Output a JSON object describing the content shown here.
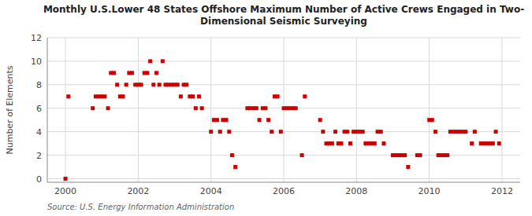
{
  "chart_data": {
    "type": "scatter",
    "title": "Monthly U.S.Lower 48 States Offshore Maximum Number of Active Crews Engaged in Two-\nDimensional Seismic Surveying",
    "y_label": "Number of Elements",
    "source": "Source: U.S. Energy Information Administration",
    "color": "#cc0000",
    "marker": "square",
    "grid": true,
    "xlim": [
      1999.5,
      2012.5
    ],
    "ylim": [
      -0.3,
      12
    ],
    "xticks": [
      2000,
      2002,
      2004,
      2006,
      2008,
      2010,
      2012
    ],
    "yticks": [
      0,
      2,
      4,
      6,
      8,
      10,
      12
    ],
    "x": [
      2000.0,
      2000.08,
      2000.75,
      2000.83,
      2000.92,
      2001.0,
      2001.08,
      2001.17,
      2001.25,
      2001.33,
      2001.42,
      2001.5,
      2001.58,
      2001.67,
      2001.75,
      2001.83,
      2001.92,
      2002.0,
      2002.08,
      2002.17,
      2002.25,
      2002.33,
      2002.42,
      2002.5,
      2002.58,
      2002.67,
      2002.75,
      2002.83,
      2002.92,
      2003.0,
      2003.08,
      2003.17,
      2003.25,
      2003.33,
      2003.42,
      2003.5,
      2003.58,
      2003.67,
      2003.75,
      2004.0,
      2004.08,
      2004.17,
      2004.25,
      2004.33,
      2004.42,
      2004.5,
      2004.58,
      2004.67,
      2005.0,
      2005.08,
      2005.17,
      2005.25,
      2005.33,
      2005.42,
      2005.5,
      2005.58,
      2005.67,
      2005.75,
      2005.83,
      2005.92,
      2006.0,
      2006.08,
      2006.17,
      2006.25,
      2006.33,
      2006.5,
      2006.58,
      2007.0,
      2007.08,
      2007.17,
      2007.25,
      2007.33,
      2007.42,
      2007.5,
      2007.58,
      2007.67,
      2007.75,
      2007.83,
      2007.92,
      2008.0,
      2008.08,
      2008.17,
      2008.25,
      2008.33,
      2008.42,
      2008.5,
      2008.58,
      2008.67,
      2008.75,
      2009.0,
      2009.08,
      2009.17,
      2009.25,
      2009.33,
      2009.42,
      2009.67,
      2009.75,
      2010.0,
      2010.08,
      2010.17,
      2010.25,
      2010.33,
      2010.42,
      2010.5,
      2010.58,
      2010.67,
      2010.75,
      2010.83,
      2010.92,
      2011.0,
      2011.17,
      2011.25,
      2011.42,
      2011.5,
      2011.58,
      2011.67,
      2011.75,
      2011.83,
      2011.92
    ],
    "values": [
      0,
      7,
      6,
      7,
      7,
      7,
      7,
      6,
      9,
      9,
      8,
      7,
      7,
      8,
      9,
      9,
      8,
      8,
      8,
      9,
      9,
      10,
      8,
      9,
      8,
      10,
      8,
      8,
      8,
      8,
      8,
      7,
      8,
      8,
      7,
      7,
      6,
      7,
      6,
      4,
      5,
      5,
      4,
      5,
      5,
      4,
      2,
      1,
      6,
      6,
      6,
      6,
      5,
      6,
      6,
      5,
      4,
      7,
      7,
      4,
      6,
      6,
      6,
      6,
      6,
      2,
      7,
      5,
      4,
      3,
      3,
      3,
      4,
      3,
      3,
      4,
      4,
      3,
      4,
      4,
      4,
      4,
      3,
      3,
      3,
      3,
      4,
      4,
      3,
      2,
      2,
      2,
      2,
      2,
      1,
      2,
      2,
      5,
      5,
      4,
      2,
      2,
      2,
      2,
      4,
      4,
      4,
      4,
      4,
      4,
      3,
      4,
      3,
      3,
      3,
      3,
      3,
      4,
      3
    ]
  }
}
